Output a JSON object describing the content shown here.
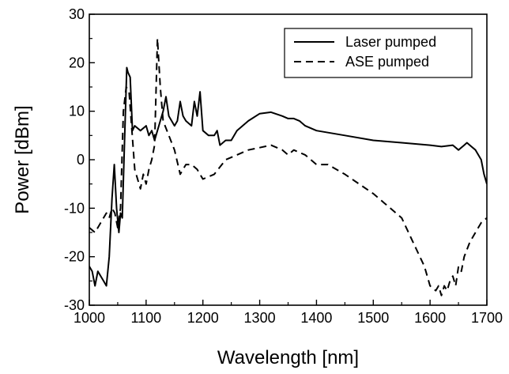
{
  "chart_data": {
    "type": "line",
    "xlabel": "Wavelength [nm]",
    "ylabel": "Power [dBm]",
    "xlim": [
      1000,
      1700
    ],
    "ylim": [
      -30,
      30
    ],
    "xticks": [
      1000,
      1100,
      1200,
      1300,
      1400,
      1500,
      1600,
      1700
    ],
    "yticks": [
      -30,
      -20,
      -10,
      0,
      10,
      20,
      30
    ],
    "xtick_labels": [
      "1000",
      "1100",
      "1200",
      "1300",
      "1400",
      "1500",
      "1600",
      "1700"
    ],
    "ytick_labels": [
      "-30",
      "-20",
      "-10",
      "0",
      "10",
      "20",
      "30"
    ],
    "grid": false,
    "legend": {
      "position": "top-right",
      "entries": [
        {
          "label": "Laser pumped",
          "style": "solid"
        },
        {
          "label": "ASE pumped",
          "style": "dashed"
        }
      ]
    },
    "series": [
      {
        "name": "Laser pumped",
        "style": "solid",
        "color": "#000000",
        "x": [
          1000,
          1005,
          1010,
          1015,
          1020,
          1025,
          1030,
          1035,
          1040,
          1044,
          1048,
          1052,
          1055,
          1058,
          1062,
          1066,
          1068,
          1072,
          1076,
          1080,
          1090,
          1100,
          1105,
          1110,
          1115,
          1120,
          1125,
          1130,
          1135,
          1140,
          1150,
          1155,
          1160,
          1165,
          1170,
          1180,
          1185,
          1190,
          1195,
          1200,
          1210,
          1220,
          1225,
          1230,
          1240,
          1250,
          1260,
          1280,
          1300,
          1320,
          1340,
          1350,
          1360,
          1370,
          1380,
          1400,
          1450,
          1500,
          1550,
          1600,
          1620,
          1640,
          1650,
          1660,
          1665,
          1670,
          1680,
          1690,
          1695,
          1700
        ],
        "y": [
          -22,
          -23,
          -26,
          -23,
          -24,
          -25,
          -26,
          -20,
          -8,
          -1,
          -10,
          -15,
          -11,
          -12,
          4,
          19,
          18,
          17,
          6,
          7,
          6,
          7,
          5,
          6,
          4,
          6,
          8,
          10,
          13,
          9,
          7,
          8,
          12,
          9,
          8,
          7,
          12,
          9,
          14,
          6,
          5,
          5,
          6,
          3,
          4,
          4,
          6,
          8,
          9.5,
          9.8,
          9,
          8.5,
          8.5,
          8,
          7,
          6,
          5,
          4,
          3.5,
          3,
          2.7,
          3,
          2,
          3,
          3.5,
          3,
          2,
          0,
          -3,
          -5
        ]
      },
      {
        "name": "ASE pumped",
        "style": "dashed",
        "color": "#000000",
        "x": [
          1000,
          1010,
          1020,
          1030,
          1035,
          1040,
          1045,
          1050,
          1055,
          1060,
          1065,
          1070,
          1080,
          1090,
          1095,
          1100,
          1105,
          1110,
          1115,
          1120,
          1125,
          1130,
          1140,
          1150,
          1160,
          1170,
          1180,
          1190,
          1200,
          1220,
          1240,
          1260,
          1280,
          1300,
          1320,
          1340,
          1350,
          1360,
          1370,
          1380,
          1400,
          1420,
          1450,
          1500,
          1520,
          1550,
          1570,
          1590,
          1600,
          1610,
          1615,
          1620,
          1625,
          1630,
          1635,
          1640,
          1645,
          1650,
          1655,
          1660,
          1670,
          1680,
          1690,
          1700
        ],
        "y": [
          -14,
          -15,
          -13,
          -11,
          -12,
          -10,
          -11,
          -14,
          -10,
          10,
          15,
          14,
          -2,
          -6,
          -3,
          -5,
          -2,
          0,
          3,
          25,
          15,
          8,
          5,
          2,
          -3,
          -1,
          -1,
          -2,
          -4,
          -3,
          0,
          1,
          2,
          2.5,
          3,
          2,
          1,
          2,
          1.5,
          1,
          -1,
          -1,
          -3,
          -7,
          -9,
          -12,
          -17,
          -22,
          -26,
          -27,
          -26,
          -28,
          -26,
          -27,
          -25,
          -24,
          -26,
          -22,
          -23,
          -20,
          -17,
          -15,
          -13,
          -12
        ]
      }
    ]
  }
}
